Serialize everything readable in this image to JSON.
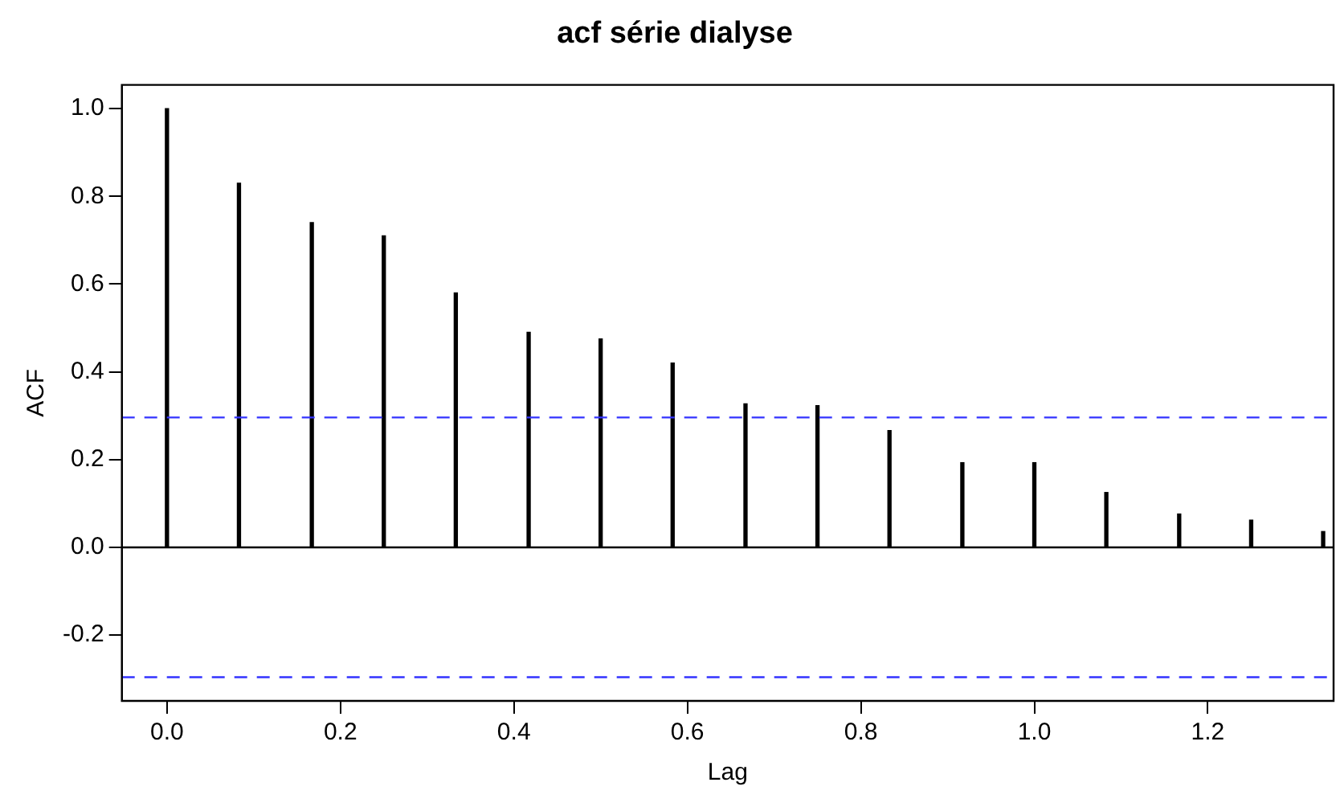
{
  "chart_data": {
    "type": "bar",
    "title": "acf série dialyse",
    "xlabel": "Lag",
    "ylabel": "ACF",
    "x": [
      0,
      0.083,
      0.167,
      0.25,
      0.333,
      0.417,
      0.5,
      0.583,
      0.667,
      0.75,
      0.833,
      0.917,
      1,
      1.083,
      1.167,
      1.25,
      1.333
    ],
    "values": [
      1.0,
      0.83,
      0.74,
      0.71,
      0.58,
      0.49,
      0.475,
      0.42,
      0.327,
      0.323,
      0.266,
      0.193,
      0.193,
      0.125,
      0.076,
      0.062,
      0.036
    ],
    "color": "#000000",
    "xlim": [
      -0.052,
      1.345
    ],
    "xticks": [
      {
        "value": 0,
        "label": "0.0"
      },
      0.2,
      0.4,
      0.6,
      0.8,
      {
        "value": 1,
        "label": "1.0"
      },
      1.2
    ],
    "ylim": [
      -0.35,
      1.054
    ],
    "yticks": [
      -0.2,
      {
        "value": 0,
        "label": "0.0"
      },
      0.2,
      0.4,
      0.6,
      0.8,
      {
        "value": 1,
        "label": "1.0"
      }
    ],
    "ref_lines": [
      {
        "axis": "y",
        "value": 0,
        "color": "#000000",
        "line_style": "solid"
      },
      {
        "axis": "y",
        "value": 0.296,
        "color": "#3333ff",
        "line_style": "dashed"
      },
      {
        "axis": "y",
        "value": -0.296,
        "color": "#3333ff",
        "line_style": "dashed"
      }
    ],
    "grid": false,
    "legend": false
  }
}
